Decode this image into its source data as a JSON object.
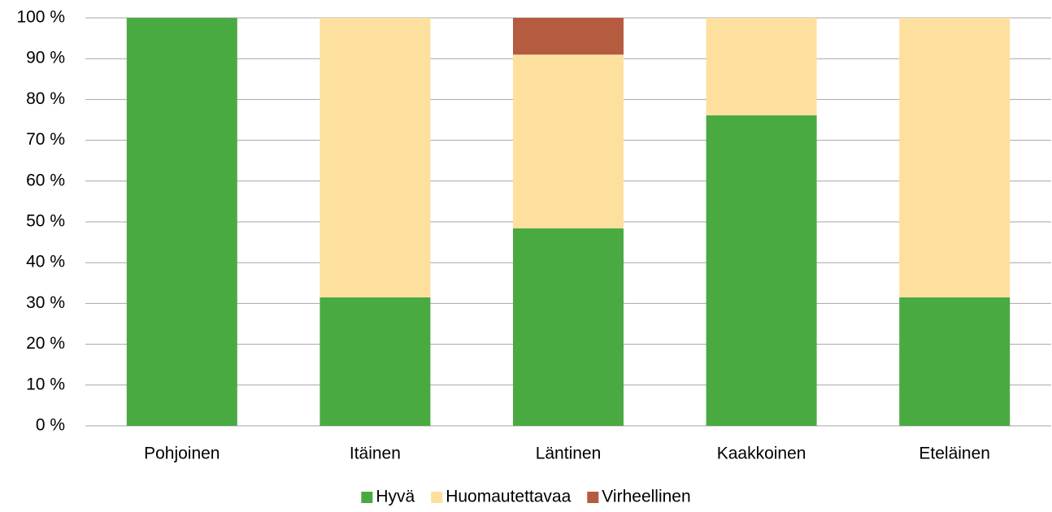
{
  "chart_data": {
    "type": "stacked_bar",
    "categories": [
      "Pohjoinen",
      "Itäinen",
      "Läntinen",
      "Kaakkoinen",
      "Eteläinen"
    ],
    "series": [
      {
        "name": "Hyvä",
        "color": "#4aaa42",
        "values": [
          100,
          31.5,
          48.4,
          76.1,
          31.5
        ]
      },
      {
        "name": "Huomautettavaa",
        "color": "#fde09e",
        "values": [
          0,
          68.5,
          42.6,
          23.9,
          68.5
        ]
      },
      {
        "name": "Virheellinen",
        "color": "#b55b40",
        "values": [
          0,
          0,
          9,
          0,
          0
        ]
      }
    ],
    "ylim": [
      0,
      100
    ],
    "yticks": [
      {
        "value": 0,
        "label": "0 %"
      },
      {
        "value": 10,
        "label": "10 %"
      },
      {
        "value": 20,
        "label": "20 %"
      },
      {
        "value": 30,
        "label": "30 %"
      },
      {
        "value": 40,
        "label": "40 %"
      },
      {
        "value": 50,
        "label": "50 %"
      },
      {
        "value": 60,
        "label": "60 %"
      },
      {
        "value": 70,
        "label": "70 %"
      },
      {
        "value": 80,
        "label": "80 %"
      },
      {
        "value": 90,
        "label": "90 %"
      },
      {
        "value": 100,
        "label": "100 %"
      }
    ],
    "grid": true,
    "legend": "bottom"
  }
}
